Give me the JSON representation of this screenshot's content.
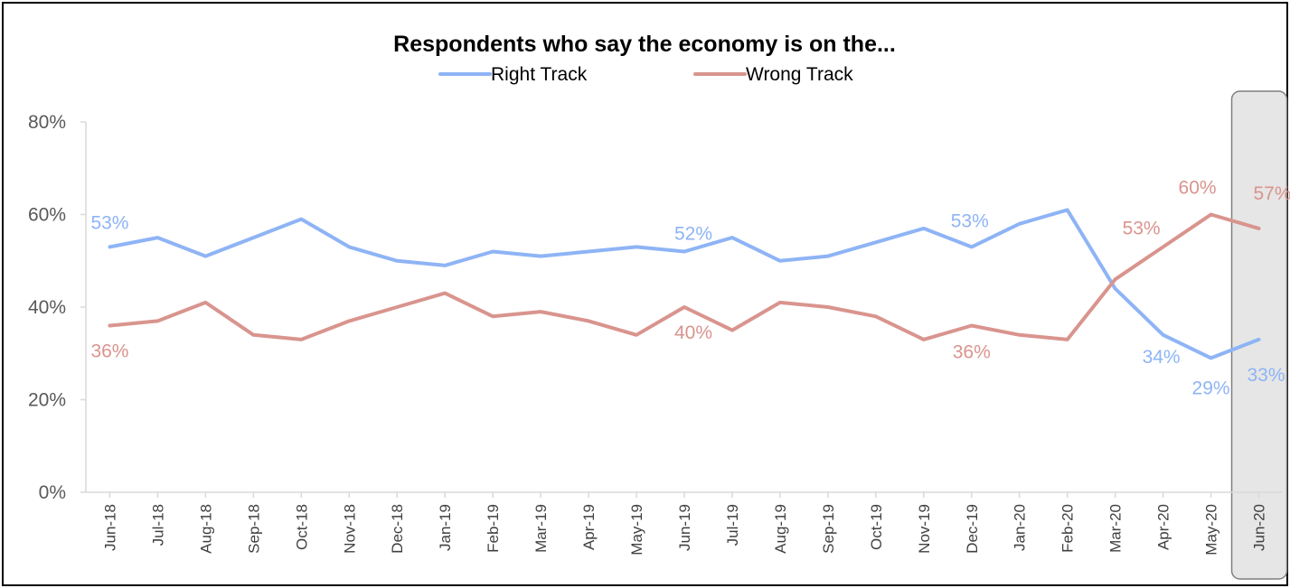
{
  "chart_data": {
    "type": "line",
    "title": "Respondents who say the economy is on the...",
    "xlabel": "",
    "ylabel": "",
    "ylim": [
      0,
      80
    ],
    "yticks": [
      "0%",
      "20%",
      "40%",
      "60%",
      "80%"
    ],
    "grid": false,
    "legend_position": "top",
    "categories": [
      "Jun-18",
      "Jul-18",
      "Aug-18",
      "Sep-18",
      "Oct-18",
      "Nov-18",
      "Dec-18",
      "Jan-19",
      "Feb-19",
      "Mar-19",
      "Apr-19",
      "May-19",
      "Jun-19",
      "Jul-19",
      "Aug-19",
      "Sep-19",
      "Oct-19",
      "Nov-19",
      "Dec-19",
      "Jan-20",
      "Feb-20",
      "Mar-20",
      "Apr-20",
      "May-20",
      "Jun-20"
    ],
    "highlight_category": "Jun-20",
    "series": [
      {
        "name": "Right Track",
        "color": "#8EB4F5",
        "values": [
          53,
          55,
          51,
          55,
          59,
          53,
          50,
          49,
          52,
          51,
          52,
          53,
          52,
          55,
          50,
          51,
          54,
          57,
          53,
          58,
          61,
          44,
          34,
          29,
          33
        ],
        "data_labels": [
          {
            "index": 0,
            "text": "53%"
          },
          {
            "index": 12,
            "text": "52%"
          },
          {
            "index": 18,
            "text": "53%"
          },
          {
            "index": 22,
            "text": "34%"
          },
          {
            "index": 23,
            "text": "29%"
          },
          {
            "index": 24,
            "text": "33%"
          }
        ]
      },
      {
        "name": "Wrong Track",
        "color": "#D9948E",
        "values": [
          36,
          37,
          41,
          34,
          33,
          37,
          40,
          43,
          38,
          39,
          37,
          34,
          40,
          35,
          41,
          40,
          38,
          33,
          36,
          34,
          33,
          46,
          53,
          60,
          57
        ],
        "data_labels": [
          {
            "index": 0,
            "text": "36%"
          },
          {
            "index": 12,
            "text": "40%"
          },
          {
            "index": 18,
            "text": "36%"
          },
          {
            "index": 22,
            "text": "53%"
          },
          {
            "index": 23,
            "text": "60%"
          },
          {
            "index": 24,
            "text": "57%"
          }
        ]
      }
    ]
  }
}
